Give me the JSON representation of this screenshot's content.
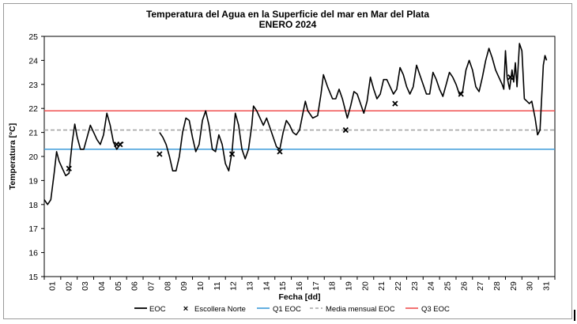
{
  "chart_data": {
    "type": "line",
    "title": "Temperatura del Agua en la Superficie del mar en Mar del Plata",
    "subtitle": "ENERO 2024",
    "xlabel": "Fecha [dd]",
    "ylabel": "Temperatura [°C]",
    "ylim": [
      15,
      25
    ],
    "yticks": [
      "15",
      "16",
      "17",
      "18",
      "19",
      "20",
      "21",
      "22",
      "23",
      "24",
      "25"
    ],
    "xticks": [
      "01",
      "02",
      "03",
      "04",
      "05",
      "06",
      "07",
      "08",
      "09",
      "10",
      "11",
      "12",
      "13",
      "14",
      "15",
      "16",
      "17",
      "18",
      "19",
      "20",
      "21",
      "22",
      "23",
      "24",
      "25",
      "26",
      "27",
      "28",
      "29",
      "30",
      "31"
    ],
    "grid": false,
    "legend_position": "bottom",
    "legend": {
      "eoc": "EOC",
      "escollera": "Escollera Norte",
      "q1": "Q1 EOC",
      "media": "Media mensual EOC",
      "q3": "Q3 EOC"
    },
    "colors": {
      "eoc": "#000000",
      "escollera": "#000000",
      "q1": "#3d9bd9",
      "media": "#a6a6a6",
      "q3": "#f05050"
    },
    "reference_lines": {
      "q1": 20.3,
      "media": 21.1,
      "q3": 21.9
    },
    "series": [
      {
        "name": "EOC",
        "segments": [
          [
            [
              1.0,
              18.2
            ],
            [
              1.2,
              18.0
            ],
            [
              1.4,
              18.2
            ],
            [
              1.6,
              19.3
            ],
            [
              1.75,
              20.2
            ],
            [
              1.9,
              19.8
            ],
            [
              2.1,
              19.5
            ],
            [
              2.3,
              19.2
            ],
            [
              2.5,
              19.3
            ],
            [
              2.7,
              20.6
            ],
            [
              2.85,
              21.35
            ],
            [
              3.0,
              20.8
            ],
            [
              3.2,
              20.3
            ],
            [
              3.4,
              20.3
            ],
            [
              3.6,
              20.8
            ],
            [
              3.8,
              21.3
            ],
            [
              4.0,
              21.0
            ],
            [
              4.2,
              20.7
            ],
            [
              4.4,
              20.5
            ],
            [
              4.6,
              20.9
            ],
            [
              4.8,
              21.8
            ],
            [
              5.0,
              21.3
            ],
            [
              5.2,
              20.6
            ],
            [
              5.4,
              20.3
            ],
            [
              5.6,
              20.5
            ],
            [
              5.8,
              20.6
            ]
          ],
          [
            [
              8.0,
              21.0
            ],
            [
              8.2,
              20.8
            ],
            [
              8.4,
              20.5
            ],
            [
              8.6,
              20.0
            ],
            [
              8.8,
              19.4
            ],
            [
              9.0,
              19.4
            ],
            [
              9.2,
              20.0
            ],
            [
              9.4,
              21.0
            ],
            [
              9.6,
              21.6
            ],
            [
              9.8,
              21.5
            ],
            [
              10.0,
              20.8
            ],
            [
              10.2,
              20.2
            ],
            [
              10.4,
              20.5
            ],
            [
              10.6,
              21.5
            ],
            [
              10.8,
              21.9
            ],
            [
              11.0,
              21.3
            ],
            [
              11.2,
              20.3
            ],
            [
              11.4,
              20.2
            ],
            [
              11.6,
              20.9
            ],
            [
              11.8,
              20.5
            ],
            [
              12.0,
              19.7
            ],
            [
              12.2,
              19.4
            ],
            [
              12.4,
              20.2
            ],
            [
              12.6,
              21.8
            ],
            [
              12.8,
              21.3
            ],
            [
              13.0,
              20.3
            ],
            [
              13.2,
              19.9
            ],
            [
              13.4,
              20.3
            ],
            [
              13.6,
              21.3
            ],
            [
              13.7,
              22.1
            ],
            [
              13.9,
              21.9
            ],
            [
              14.1,
              21.6
            ],
            [
              14.3,
              21.3
            ],
            [
              14.5,
              21.6
            ],
            [
              14.7,
              21.2
            ],
            [
              14.9,
              20.8
            ],
            [
              15.1,
              20.4
            ],
            [
              15.3,
              20.3
            ],
            [
              15.5,
              21.0
            ],
            [
              15.7,
              21.5
            ],
            [
              15.9,
              21.3
            ],
            [
              16.1,
              21.0
            ],
            [
              16.3,
              20.9
            ],
            [
              16.5,
              21.1
            ],
            [
              16.7,
              21.8
            ],
            [
              16.85,
              22.3
            ],
            [
              17.0,
              21.9
            ],
            [
              17.3,
              21.6
            ],
            [
              17.6,
              21.7
            ],
            [
              17.8,
              22.6
            ],
            [
              17.95,
              23.4
            ],
            [
              18.2,
              22.9
            ],
            [
              18.5,
              22.4
            ],
            [
              18.7,
              22.4
            ],
            [
              18.9,
              22.8
            ],
            [
              19.1,
              22.4
            ],
            [
              19.4,
              21.6
            ],
            [
              19.6,
              22.1
            ],
            [
              19.8,
              22.7
            ],
            [
              20.0,
              22.6
            ],
            [
              20.2,
              22.2
            ],
            [
              20.4,
              21.8
            ],
            [
              20.6,
              22.3
            ],
            [
              20.8,
              23.3
            ],
            [
              21.0,
              22.8
            ],
            [
              21.2,
              22.4
            ],
            [
              21.4,
              22.6
            ],
            [
              21.6,
              23.2
            ],
            [
              21.8,
              23.2
            ],
            [
              22.0,
              22.9
            ],
            [
              22.2,
              22.6
            ],
            [
              22.4,
              22.8
            ],
            [
              22.6,
              23.7
            ],
            [
              22.8,
              23.4
            ],
            [
              23.0,
              22.9
            ],
            [
              23.2,
              22.6
            ],
            [
              23.4,
              22.9
            ],
            [
              23.6,
              23.8
            ],
            [
              23.8,
              23.4
            ],
            [
              24.0,
              23.0
            ],
            [
              24.2,
              22.6
            ],
            [
              24.4,
              22.6
            ],
            [
              24.6,
              23.5
            ],
            [
              24.8,
              23.2
            ],
            [
              25.0,
              22.8
            ],
            [
              25.2,
              22.5
            ],
            [
              25.4,
              23.0
            ],
            [
              25.6,
              23.5
            ],
            [
              25.8,
              23.3
            ],
            [
              26.0,
              23.0
            ],
            [
              26.2,
              22.6
            ],
            [
              26.4,
              22.7
            ],
            [
              26.6,
              23.6
            ],
            [
              26.8,
              24.0
            ],
            [
              27.0,
              23.6
            ],
            [
              27.2,
              22.9
            ],
            [
              27.4,
              22.7
            ],
            [
              27.6,
              23.3
            ],
            [
              27.8,
              24.0
            ],
            [
              28.0,
              24.5
            ],
            [
              28.2,
              24.1
            ],
            [
              28.4,
              23.6
            ],
            [
              28.6,
              23.3
            ],
            [
              28.8,
              23.0
            ],
            [
              28.9,
              22.8
            ],
            [
              29.0,
              24.4
            ],
            [
              29.1,
              23.3
            ],
            [
              29.25,
              22.8
            ],
            [
              29.4,
              23.6
            ],
            [
              29.5,
              23.1
            ],
            [
              29.6,
              23.9
            ],
            [
              29.7,
              22.9
            ],
            [
              29.85,
              24.7
            ],
            [
              30.0,
              24.4
            ],
            [
              30.15,
              22.4
            ],
            [
              30.3,
              22.3
            ],
            [
              30.45,
              22.2
            ],
            [
              30.6,
              22.3
            ],
            [
              30.8,
              21.6
            ],
            [
              30.95,
              20.9
            ],
            [
              31.1,
              21.1
            ],
            [
              31.3,
              23.8
            ],
            [
              31.4,
              24.2
            ],
            [
              31.5,
              24.0
            ]
          ]
        ]
      },
      {
        "name": "Escollera Norte",
        "points": [
          [
            2.5,
            19.5
          ],
          [
            5.4,
            20.5
          ],
          [
            5.6,
            20.5
          ],
          [
            8.0,
            20.1
          ],
          [
            12.4,
            20.1
          ],
          [
            15.3,
            20.2
          ],
          [
            19.3,
            21.1
          ],
          [
            22.3,
            22.2
          ],
          [
            26.3,
            22.6
          ],
          [
            29.3,
            23.3
          ]
        ]
      }
    ]
  }
}
